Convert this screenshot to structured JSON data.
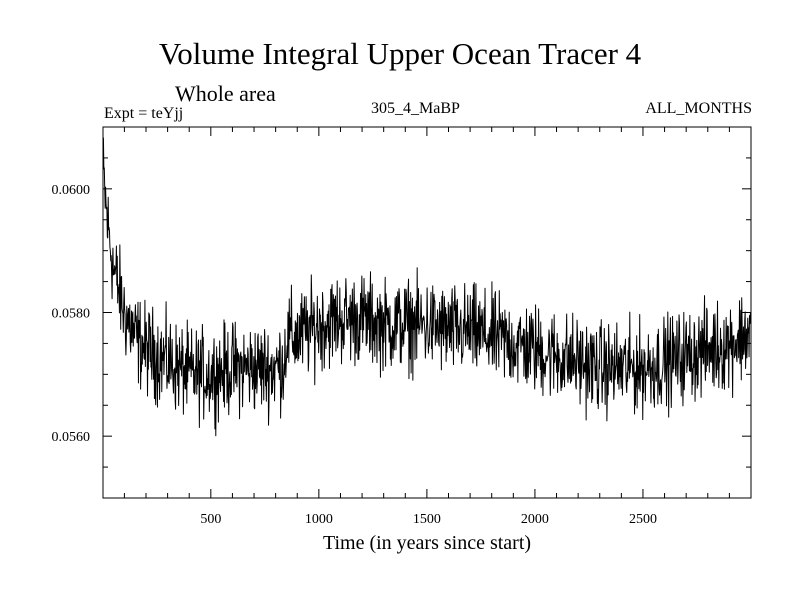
{
  "chart_data": {
    "type": "line",
    "title": "Volume Integral Upper Ocean Tracer 4",
    "subtitle": "Whole area",
    "experiment_label": "Expt = teYjj",
    "run_label": "305_4_MaBP",
    "months_label": "ALL_MONTHS",
    "xlabel": "Time (in years since start)",
    "ylabel": "",
    "xlim": [
      1,
      3000
    ],
    "ylim": [
      0.055,
      0.061
    ],
    "x_ticks": [
      500,
      1000,
      1500,
      2000,
      2500
    ],
    "x_tick_labels": [
      "500",
      "1000",
      "1500",
      "2000",
      "2500"
    ],
    "y_ticks": [
      0.056,
      0.058,
      0.06
    ],
    "y_tick_labels": [
      "0.0560",
      "0.0580",
      "0.0600"
    ],
    "grid": false,
    "series": [
      {
        "name": "Volume Integral Upper Ocean Tracer 4",
        "color": "#000000",
        "trend_x": [
          1,
          20,
          50,
          100,
          150,
          200,
          300,
          400,
          500,
          600,
          700,
          800,
          840,
          850,
          900,
          1000,
          1100,
          1200,
          1300,
          1400,
          1500,
          1600,
          1700,
          1800,
          1900,
          2000,
          2100,
          2200,
          2300,
          2400,
          2500,
          2600,
          2700,
          2800,
          2900,
          3000
        ],
        "trend_y": [
          0.0603,
          0.0595,
          0.0587,
          0.058,
          0.0576,
          0.0574,
          0.0572,
          0.057,
          0.057,
          0.0571,
          0.0571,
          0.0571,
          0.0572,
          0.0576,
          0.0576,
          0.0578,
          0.0579,
          0.0579,
          0.0578,
          0.0578,
          0.0578,
          0.0577,
          0.0577,
          0.0576,
          0.0575,
          0.0574,
          0.0573,
          0.0572,
          0.0571,
          0.0571,
          0.0571,
          0.0572,
          0.0573,
          0.0574,
          0.0575,
          0.0577
        ],
        "noise_amplitude": 0.00055,
        "sample_step_years": 2
      }
    ]
  }
}
